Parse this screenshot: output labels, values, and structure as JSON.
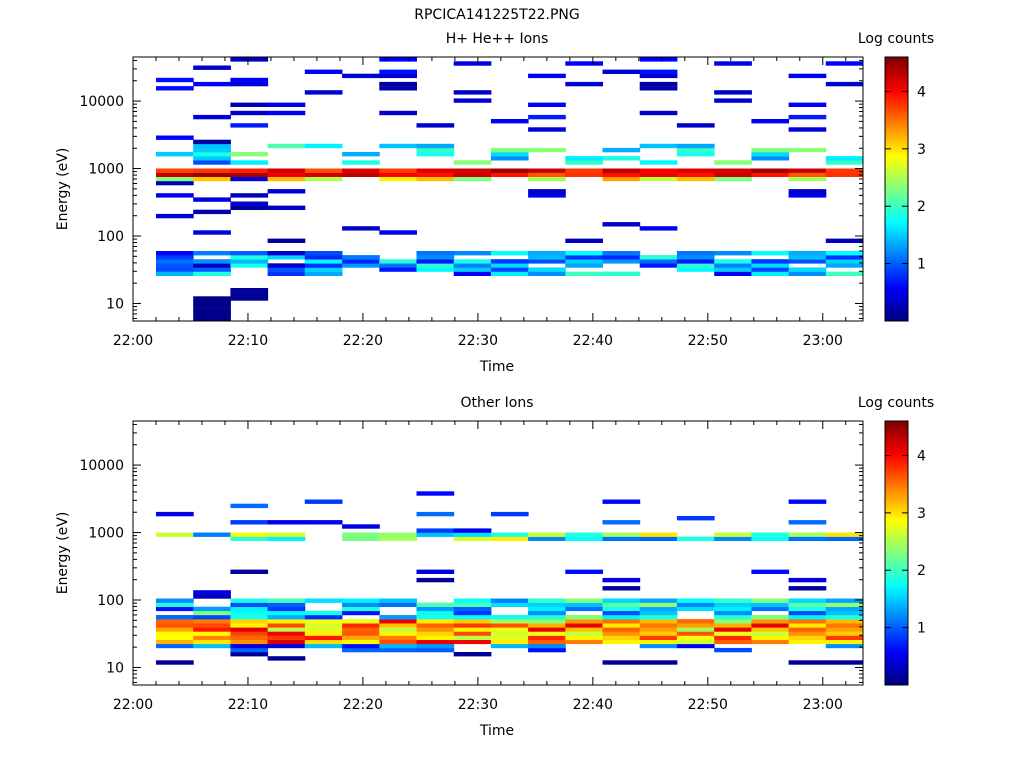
{
  "page_title": "RPCICA141225T22.PNG",
  "chart_data": [
    {
      "type": "heatmap",
      "title": "H+ He++ Ions",
      "xlabel": "Time",
      "ylabel": "Energy (eV)",
      "x_ticks": [
        "22:00",
        "22:10",
        "22:20",
        "22:30",
        "22:40",
        "22:50",
        "23:00"
      ],
      "y_scale": "log",
      "ylim": [
        5.5,
        45000
      ],
      "y_ticks": [
        {
          "value": 10,
          "label": "10"
        },
        {
          "value": 100,
          "label": "100"
        },
        {
          "value": 1000,
          "label": "1000"
        },
        {
          "value": 10000,
          "label": "10000"
        }
      ],
      "colorbar": {
        "label": "Log counts",
        "range": [
          0,
          4.6
        ],
        "ticks": [
          {
            "value": 1,
            "label": "1"
          },
          {
            "value": 2,
            "label": "2"
          },
          {
            "value": 3,
            "label": "3"
          },
          {
            "value": 4,
            "label": "4"
          }
        ]
      }
    },
    {
      "type": "heatmap",
      "title": "Other Ions",
      "xlabel": "Time",
      "ylabel": "Energy (eV)",
      "x_ticks": [
        "22:00",
        "22:10",
        "22:20",
        "22:30",
        "22:40",
        "22:50",
        "23:00"
      ],
      "y_scale": "log",
      "ylim": [
        5.5,
        45000
      ],
      "y_ticks": [
        {
          "value": 10,
          "label": "10"
        },
        {
          "value": 100,
          "label": "100"
        },
        {
          "value": 1000,
          "label": "1000"
        },
        {
          "value": 10000,
          "label": "10000"
        }
      ],
      "colorbar": {
        "label": "Log counts",
        "range": [
          0,
          4.6
        ],
        "ticks": [
          {
            "value": 1,
            "label": "1"
          },
          {
            "value": 2,
            "label": "2"
          },
          {
            "value": 3,
            "label": "3"
          },
          {
            "value": 4,
            "label": "4"
          }
        ]
      }
    }
  ]
}
